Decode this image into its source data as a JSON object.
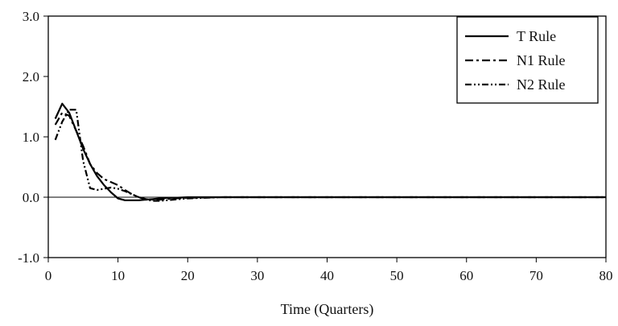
{
  "chart_data": {
    "type": "line",
    "title": "",
    "xlabel": "Time (Quarters)",
    "ylabel": "",
    "xlim": [
      0,
      80
    ],
    "ylim": [
      -1.0,
      3.0
    ],
    "xticks": [
      "0",
      "10",
      "20",
      "30",
      "40",
      "50",
      "60",
      "70",
      "80"
    ],
    "yticks": [
      "3.0",
      "2.0",
      "1.0",
      "0.0",
      "-1.0"
    ],
    "grid": false,
    "zero_line": true,
    "legend_position": "top-right",
    "series": [
      {
        "name": "T Rule",
        "style": "solid",
        "color": "#000000",
        "x": [
          1,
          2,
          3,
          4,
          5,
          6,
          7,
          8,
          9,
          10,
          11,
          12,
          13,
          14,
          15,
          16,
          17,
          18,
          20,
          25,
          30,
          40,
          50,
          60,
          70,
          80
        ],
        "y": [
          1.3,
          1.55,
          1.4,
          1.1,
          0.8,
          0.55,
          0.35,
          0.2,
          0.08,
          -0.02,
          -0.05,
          -0.05,
          -0.05,
          -0.04,
          -0.03,
          -0.02,
          -0.01,
          -0.01,
          0.0,
          0.0,
          0.0,
          0.0,
          0.0,
          0.0,
          0.0,
          0.0
        ]
      },
      {
        "name": "N1 Rule",
        "style": "dash-dot",
        "color": "#000000",
        "x": [
          1,
          2,
          3,
          4,
          5,
          6,
          7,
          8,
          9,
          10,
          11,
          12,
          13,
          14,
          15,
          16,
          17,
          18,
          20,
          25,
          30,
          40,
          50,
          60,
          70,
          80
        ],
        "y": [
          1.2,
          1.4,
          1.35,
          1.1,
          0.85,
          0.55,
          0.4,
          0.3,
          0.25,
          0.2,
          0.12,
          0.05,
          0.0,
          -0.03,
          -0.04,
          -0.04,
          -0.03,
          -0.02,
          -0.01,
          0.0,
          0.0,
          0.0,
          0.0,
          0.0,
          0.0,
          0.0
        ]
      },
      {
        "name": "N2 Rule",
        "style": "dash-dot-dot",
        "color": "#000000",
        "x": [
          1,
          2,
          3,
          4,
          5,
          6,
          7,
          8,
          9,
          10,
          11,
          12,
          13,
          14,
          15,
          16,
          17,
          18,
          20,
          25,
          30,
          40,
          50,
          60,
          70,
          80
        ],
        "y": [
          0.95,
          1.25,
          1.45,
          1.45,
          0.6,
          0.15,
          0.12,
          0.14,
          0.16,
          0.14,
          0.1,
          0.05,
          0.0,
          -0.04,
          -0.06,
          -0.06,
          -0.05,
          -0.04,
          -0.02,
          0.0,
          0.0,
          0.0,
          0.0,
          0.0,
          0.0,
          0.0
        ]
      }
    ]
  }
}
